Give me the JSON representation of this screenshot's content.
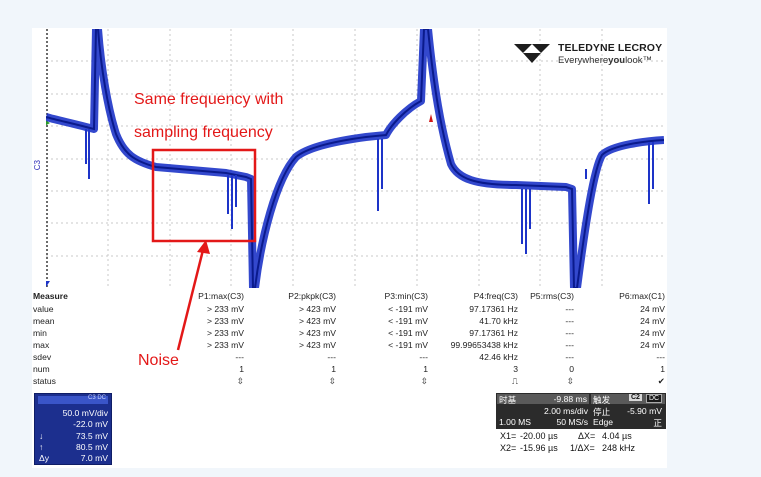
{
  "brand": {
    "name": "TELEDYNE LECROY",
    "tagline_pre": "Everywhere",
    "tagline_bold": "you",
    "tagline_post": "look",
    "tm": "™"
  },
  "channel_label": "C3",
  "annotations": {
    "line1": "Same frequency with",
    "line2": "sampling frequency",
    "noise": "Noise"
  },
  "measure": {
    "title": "Measure",
    "columns": [
      "P1:max(C3)",
      "P2:pkpk(C3)",
      "P3:min(C3)",
      "P4:freq(C3)",
      "P5:rms(C3)",
      "P6:max(C1)"
    ],
    "rows": [
      {
        "label": "value",
        "cells": [
          "> 233 mV",
          "> 423 mV",
          "< -191 mV",
          "97.17361 Hz",
          "---",
          "24 mV"
        ]
      },
      {
        "label": "mean",
        "cells": [
          "> 233 mV",
          "> 423 mV",
          "< -191 mV",
          "41.70 kHz",
          "---",
          "24 mV"
        ]
      },
      {
        "label": "min",
        "cells": [
          "> 233 mV",
          "> 423 mV",
          "< -191 mV",
          "97.17361 Hz",
          "---",
          "24 mV"
        ]
      },
      {
        "label": "max",
        "cells": [
          "> 233 mV",
          "> 423 mV",
          "< -191 mV",
          "99.99653438 kHz",
          "---",
          "24 mV"
        ]
      },
      {
        "label": "sdev",
        "cells": [
          "---",
          "---",
          "---",
          "42.46 kHz",
          "---",
          "---"
        ]
      },
      {
        "label": "num",
        "cells": [
          "1",
          "1",
          "1",
          "3",
          "0",
          "1"
        ]
      },
      {
        "label": "status",
        "cells": [
          "⇳",
          "⇳",
          "⇳",
          "⎍",
          "⇳",
          "✔"
        ]
      }
    ]
  },
  "channel_box": {
    "header": "C3 DC",
    "scale": "50.0 mV/div",
    "offset": "-22.0 mV",
    "line3_sym": "↓",
    "line3": "73.5 mV",
    "line4_sym": "↑",
    "line4": "80.5 mV",
    "line5_sym": "Δy",
    "line5": "7.0 mV"
  },
  "timebase": {
    "label": "时基",
    "delay": "-9.88 ms",
    "trigger_label": "触发",
    "trigger_badge1": "C2",
    "trigger_badge2": "DC",
    "time_div": "2.00 ms/div",
    "stop": "停止",
    "trigger_level": "-5.90 mV",
    "samples": "1.00 MS",
    "sample_rate": "50 MS/s",
    "edge": "Edge",
    "slope": "正"
  },
  "cursors": {
    "x1_label": "X1=",
    "x1": "-20.00 µs",
    "dx_label": "ΔX=",
    "dx": "4.04 µs",
    "x2_label": "X2=",
    "x2": "-15.96 µs",
    "inv_dx_label": "1/ΔX=",
    "inv_dx": "248 kHz"
  },
  "colors": {
    "trace": "#1d34c8",
    "annotation": "#e31818",
    "channel_box": "#1c2f8e"
  }
}
